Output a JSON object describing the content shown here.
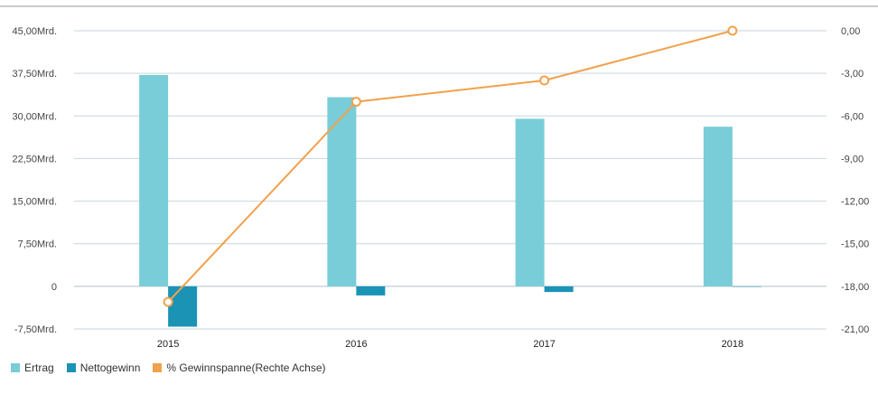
{
  "chart_data": {
    "type": "bar",
    "categories": [
      "2015",
      "2016",
      "2017",
      "2018"
    ],
    "series": [
      {
        "name": "Ertrag",
        "values": [
          37.2,
          33.3,
          29.5,
          28.1
        ],
        "color": "#79cdd8",
        "axis": "left"
      },
      {
        "name": "Nettogewinn",
        "values": [
          -7.1,
          -1.6,
          -1.0,
          0.0
        ],
        "color": "#1b93b5",
        "axis": "left"
      },
      {
        "name": "% Gewinnspanne(Rechte Achse)",
        "values": [
          -19.1,
          -5.0,
          -3.5,
          0.0
        ],
        "color": "#f0a24c",
        "axis": "right",
        "type": "line"
      }
    ],
    "left_axis": {
      "ylim": [
        -7.5,
        45
      ],
      "ticks": [
        45,
        37.5,
        30,
        22.5,
        15,
        7.5,
        0,
        -7.5
      ],
      "tick_labels": [
        "45,00Mrd.",
        "37,50Mrd.",
        "30,00Mrd.",
        "22,50Mrd.",
        "15,00Mrd.",
        "7,50Mrd.",
        "0",
        "-7,50Mrd."
      ]
    },
    "right_axis": {
      "ylim": [
        -21,
        0
      ],
      "ticks": [
        0,
        -3,
        -6,
        -9,
        -12,
        -15,
        -18,
        -21
      ],
      "tick_labels": [
        "0,00",
        "-3,00",
        "-6,00",
        "-9,00",
        "-12,00",
        "-15,00",
        "-18,00",
        "-21,00"
      ]
    },
    "grid": true,
    "legend_position": "bottom-left"
  }
}
